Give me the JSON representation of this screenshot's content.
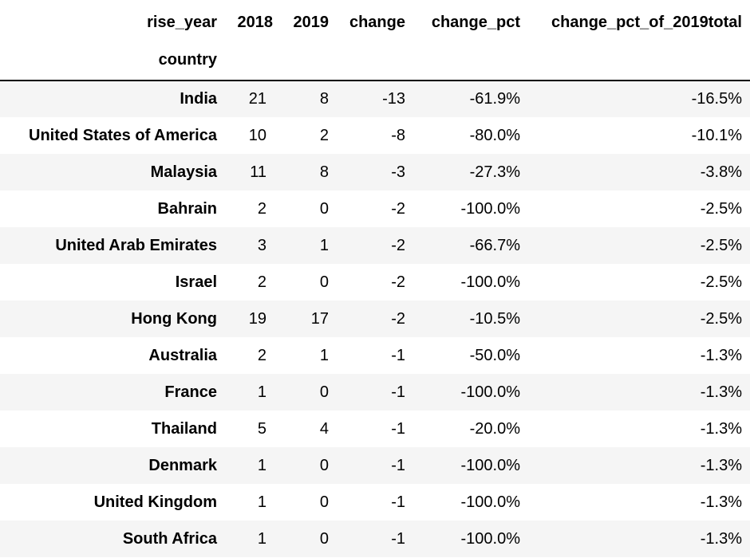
{
  "table": {
    "columns_label": "rise_year",
    "index_label": "country",
    "columns": [
      "2018",
      "2019",
      "change",
      "change_pct",
      "change_pct_of_2019total"
    ],
    "rows": [
      {
        "country": "India",
        "y2018": "21",
        "y2019": "8",
        "change": "-13",
        "change_pct": "-61.9%",
        "change_pct_of_2019total": "-16.5%"
      },
      {
        "country": "United States of America",
        "y2018": "10",
        "y2019": "2",
        "change": "-8",
        "change_pct": "-80.0%",
        "change_pct_of_2019total": "-10.1%"
      },
      {
        "country": "Malaysia",
        "y2018": "11",
        "y2019": "8",
        "change": "-3",
        "change_pct": "-27.3%",
        "change_pct_of_2019total": "-3.8%"
      },
      {
        "country": "Bahrain",
        "y2018": "2",
        "y2019": "0",
        "change": "-2",
        "change_pct": "-100.0%",
        "change_pct_of_2019total": "-2.5%"
      },
      {
        "country": "United Arab Emirates",
        "y2018": "3",
        "y2019": "1",
        "change": "-2",
        "change_pct": "-66.7%",
        "change_pct_of_2019total": "-2.5%"
      },
      {
        "country": "Israel",
        "y2018": "2",
        "y2019": "0",
        "change": "-2",
        "change_pct": "-100.0%",
        "change_pct_of_2019total": "-2.5%"
      },
      {
        "country": "Hong Kong",
        "y2018": "19",
        "y2019": "17",
        "change": "-2",
        "change_pct": "-10.5%",
        "change_pct_of_2019total": "-2.5%"
      },
      {
        "country": "Australia",
        "y2018": "2",
        "y2019": "1",
        "change": "-1",
        "change_pct": "-50.0%",
        "change_pct_of_2019total": "-1.3%"
      },
      {
        "country": "France",
        "y2018": "1",
        "y2019": "0",
        "change": "-1",
        "change_pct": "-100.0%",
        "change_pct_of_2019total": "-1.3%"
      },
      {
        "country": "Thailand",
        "y2018": "5",
        "y2019": "4",
        "change": "-1",
        "change_pct": "-20.0%",
        "change_pct_of_2019total": "-1.3%"
      },
      {
        "country": "Denmark",
        "y2018": "1",
        "y2019": "0",
        "change": "-1",
        "change_pct": "-100.0%",
        "change_pct_of_2019total": "-1.3%"
      },
      {
        "country": "United Kingdom",
        "y2018": "1",
        "y2019": "0",
        "change": "-1",
        "change_pct": "-100.0%",
        "change_pct_of_2019total": "-1.3%"
      },
      {
        "country": "South Africa",
        "y2018": "1",
        "y2019": "0",
        "change": "-1",
        "change_pct": "-100.0%",
        "change_pct_of_2019total": "-1.3%"
      }
    ]
  }
}
